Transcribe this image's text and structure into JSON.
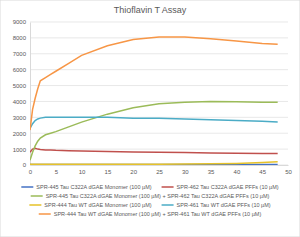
{
  "chart_data": {
    "type": "line",
    "title": "Thioflavin T Assay",
    "x": [
      0,
      0.5,
      1,
      1.5,
      2,
      3,
      4,
      5,
      7.5,
      10,
      15,
      20,
      25,
      30,
      35,
      40,
      45,
      48
    ],
    "xlim": [
      0,
      50
    ],
    "xticks": [
      0,
      5,
      10,
      15,
      20,
      25,
      30,
      35,
      40,
      45,
      50
    ],
    "ylim": [
      0,
      9000
    ],
    "yticks": [
      0,
      1000,
      2000,
      3000,
      4000,
      5000,
      6000,
      7000,
      8000,
      9000
    ],
    "grid": true,
    "legend": "bottom",
    "series": [
      {
        "name": "SPR-445 Tau C322A dGAE Monomer (100 µM)",
        "color": "#4472c4",
        "values": [
          30,
          30,
          30,
          30,
          30,
          30,
          30,
          30,
          30,
          30,
          30,
          30,
          30,
          30,
          30,
          30,
          30,
          30
        ]
      },
      {
        "name": "SPR-462 Tau C322A dGAE PFFs (10 µM)",
        "color": "#c0504d",
        "values": [
          800,
          1000,
          1050,
          1000,
          980,
          950,
          950,
          930,
          900,
          880,
          850,
          820,
          800,
          780,
          760,
          740,
          730,
          720
        ]
      },
      {
        "name": "SPR-445 Tau C322A dGAE Monomer (100 µM) + SPR-462 Tau C322A dGAE PFFs (10 µM)",
        "color": "#9bbb59",
        "values": [
          300,
          800,
          1200,
          1500,
          1700,
          1900,
          2000,
          2100,
          2400,
          2700,
          3200,
          3600,
          3850,
          3950,
          4000,
          3980,
          3950,
          3950
        ]
      },
      {
        "name": "SPR-444 Tau WT dGAE Monomer (100 µM)",
        "color": "#e6c229",
        "values": [
          50,
          50,
          50,
          50,
          50,
          50,
          50,
          50,
          50,
          50,
          50,
          50,
          50,
          60,
          80,
          100,
          150,
          200
        ]
      },
      {
        "name": "SPR-461 Tau WT dGAE PFFs (10 µM)",
        "color": "#4bacc6",
        "values": [
          2300,
          2600,
          2800,
          2900,
          2950,
          3000,
          3000,
          3000,
          3000,
          3000,
          3000,
          2950,
          2950,
          2900,
          2850,
          2800,
          2750,
          2700
        ]
      },
      {
        "name": "SPR-444 Tau WT dGAE Monomer (100 µM) + SPR-461 Tau WT dGAE PFFs (10 µM)",
        "color": "#f79646",
        "values": [
          2200,
          3500,
          4200,
          4800,
          5300,
          5500,
          5700,
          5900,
          6400,
          6900,
          7500,
          7900,
          8050,
          8050,
          7950,
          7800,
          7650,
          7600
        ]
      }
    ]
  }
}
